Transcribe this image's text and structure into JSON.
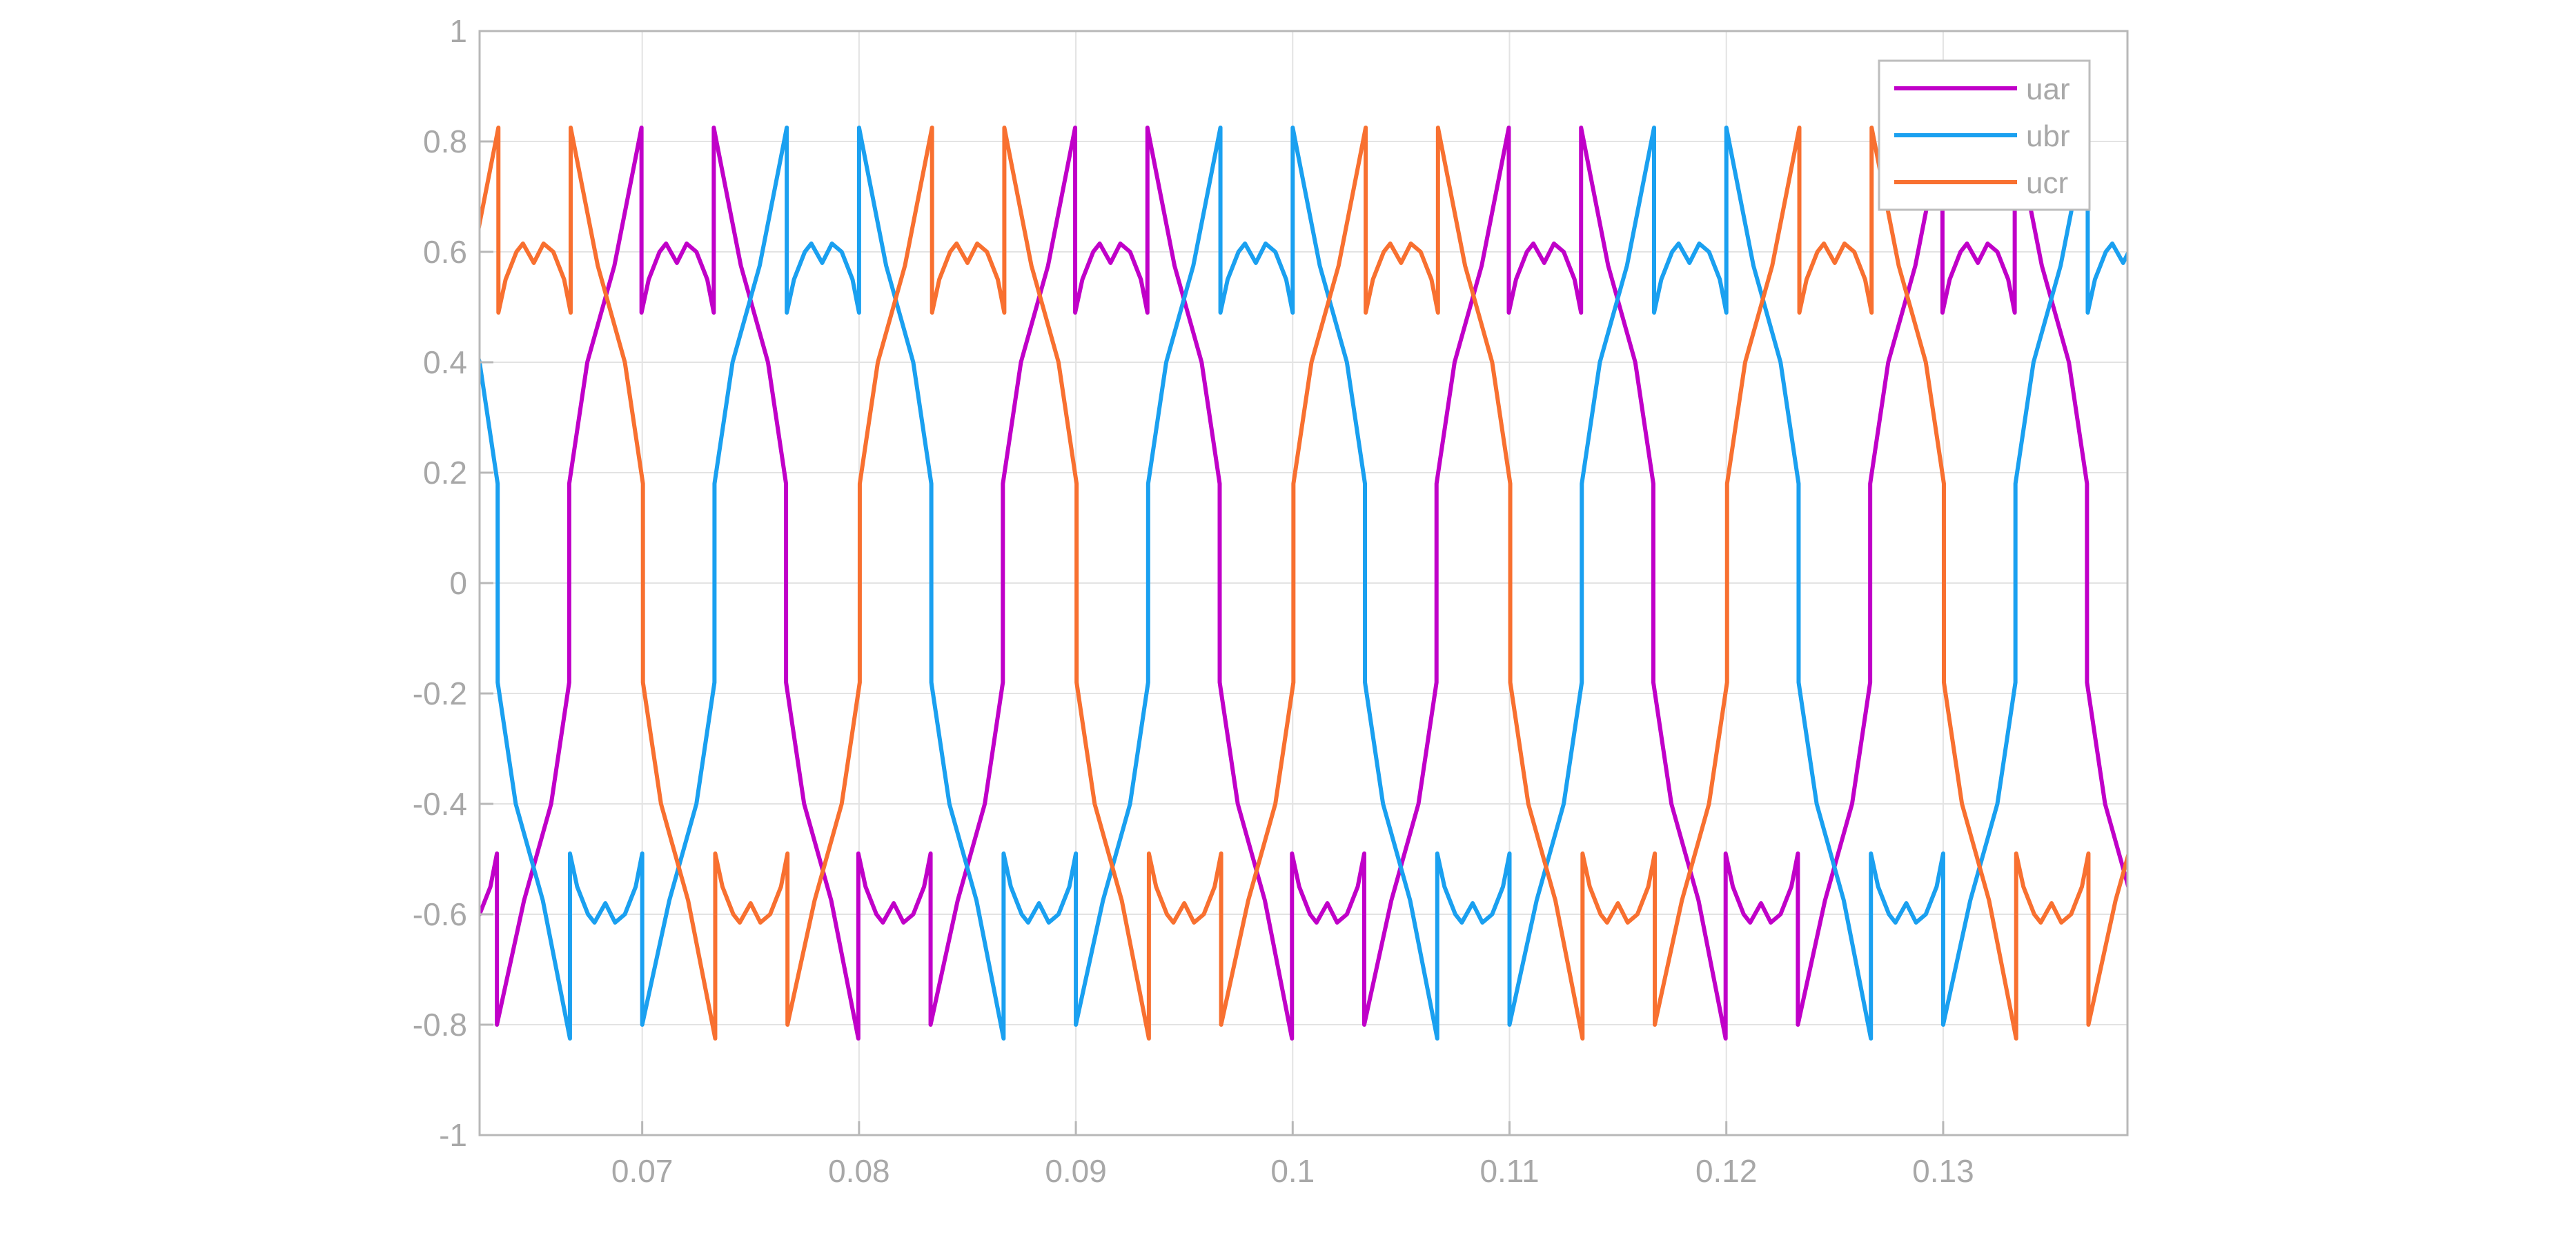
{
  "chart_data": {
    "type": "line",
    "title": "",
    "xlabel": "",
    "ylabel": "",
    "xlim": [
      0.0625,
      0.1385
    ],
    "ylim": [
      -1,
      1
    ],
    "xticks": [
      0.07,
      0.08,
      0.09,
      0.1,
      0.11,
      0.12,
      0.13
    ],
    "xtick_labels": [
      "0.07",
      "0.08",
      "0.09",
      "0.1",
      "0.11",
      "0.12",
      "0.13"
    ],
    "yticks": [
      1,
      0.8,
      0.6,
      0.4,
      0.2,
      0,
      -0.2,
      -0.4,
      -0.6,
      -0.8,
      -1
    ],
    "ytick_labels": [
      "1",
      "0.8",
      "0.6",
      "0.4",
      "0.2",
      "0",
      "-0.2",
      "-0.4",
      "-0.6",
      "-0.8",
      "-1"
    ],
    "grid": true,
    "legend_position": "top-right",
    "period": 0.02,
    "waveform_template": [
      [
        0,
        -0.8
      ],
      [
        0.00125,
        -0.575
      ],
      [
        0.0025,
        -0.4
      ],
      [
        0.003333,
        -0.18
      ],
      [
        0.003334,
        0.18
      ],
      [
        0.004167,
        0.4
      ],
      [
        0.005417,
        0.575
      ],
      [
        0.006667,
        0.825
      ],
      [
        0.006668,
        0.49
      ],
      [
        0.007,
        0.55
      ],
      [
        0.0075,
        0.6
      ],
      [
        0.0078,
        0.615
      ],
      [
        0.0083,
        0.58
      ],
      [
        0.00875,
        0.615
      ],
      [
        0.0092,
        0.6
      ],
      [
        0.0097,
        0.55
      ],
      [
        0.01,
        0.49
      ],
      [
        0.010001,
        0.825
      ],
      [
        0.01125,
        0.575
      ],
      [
        0.0125,
        0.4
      ],
      [
        0.013333,
        0.18
      ],
      [
        0.013334,
        -0.18
      ],
      [
        0.014167,
        -0.4
      ],
      [
        0.015417,
        -0.575
      ],
      [
        0.016667,
        -0.825
      ],
      [
        0.016668,
        -0.49
      ],
      [
        0.017,
        -0.55
      ],
      [
        0.0175,
        -0.6
      ],
      [
        0.0178,
        -0.615
      ],
      [
        0.0183,
        -0.58
      ],
      [
        0.01875,
        -0.615
      ],
      [
        0.0192,
        -0.6
      ],
      [
        0.0197,
        -0.55
      ],
      [
        0.02,
        -0.49
      ]
    ],
    "series": [
      {
        "name": "uar",
        "color": "#C000C8",
        "phase_shift": 0.0633
      },
      {
        "name": "ubr",
        "color": "#1AA0F0",
        "phase_shift": 0.07
      },
      {
        "name": "ucr",
        "color": "#F87030",
        "phase_shift": 0.0767
      }
    ]
  }
}
